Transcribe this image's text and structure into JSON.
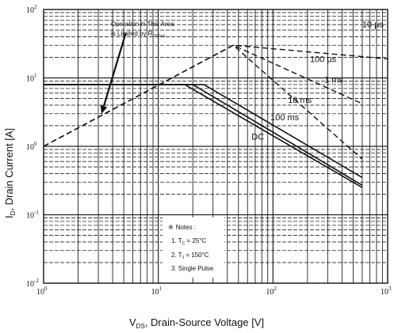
{
  "chart_data": {
    "type": "line",
    "x_scale": "log",
    "y_scale": "log",
    "xlim": [
      1,
      1000
    ],
    "ylim": [
      0.01,
      100
    ],
    "xlabel": {
      "main": "V",
      "sub": "DS",
      "rest": ", Drain-Source Voltage [V]"
    },
    "ylabel": {
      "main": "I",
      "sub": "D",
      "rest": ", Drain Current [A]"
    },
    "x_ticks": [
      {
        "value": 1,
        "base": "10",
        "exp": "0"
      },
      {
        "value": 10,
        "base": "10",
        "exp": "1"
      },
      {
        "value": 100,
        "base": "10",
        "exp": "2"
      },
      {
        "value": 1000,
        "base": "10",
        "exp": "3"
      }
    ],
    "y_ticks": [
      {
        "value": 0.01,
        "base": "10",
        "exp": "-2"
      },
      {
        "value": 0.1,
        "base": "10",
        "exp": "-1"
      },
      {
        "value": 1,
        "base": "10",
        "exp": "0"
      },
      {
        "value": 10,
        "base": "10",
        "exp": "1"
      },
      {
        "value": 100,
        "base": "10",
        "exp": "2"
      }
    ],
    "grid": true,
    "series": [
      {
        "name": "10 µs",
        "style": "dashed",
        "label_at": [
          600,
          55
        ],
        "x": [
          1,
          45,
          1000
        ],
        "y": [
          1.0,
          30.0,
          19.0
        ]
      },
      {
        "name": "100 µs",
        "style": "dashed",
        "label_at": [
          210,
          17
        ],
        "x": [
          1,
          45,
          600
        ],
        "y": [
          1.0,
          30.0,
          4.2
        ]
      },
      {
        "name": "1 ms",
        "style": "dashed",
        "label_at": [
          280,
          8.5
        ],
        "x": [
          1,
          45,
          600
        ],
        "y": [
          1.0,
          30.0,
          0.65
        ]
      },
      {
        "name": "10 ms",
        "style": "solid",
        "label_at": [
          135,
          4.3
        ],
        "x": [
          1,
          25,
          600
        ],
        "y": [
          8.0,
          8.0,
          0.35
        ]
      },
      {
        "name": "100 ms",
        "style": "solid",
        "label_at": [
          95,
          2.4
        ],
        "x": [
          1,
          20,
          600
        ],
        "y": [
          8.0,
          8.0,
          0.27
        ]
      },
      {
        "name": "DC",
        "style": "solid",
        "label_at": [
          65,
          1.25
        ],
        "x": [
          1,
          17,
          600
        ],
        "y": [
          8.0,
          8.0,
          0.25
        ]
      }
    ],
    "annotations": {
      "callout": {
        "line1": "Operation in This Area",
        "line2": "is Limited by R",
        "line2_sub": "DS(on)",
        "from": [
          5.2,
          45
        ],
        "to": [
          3.2,
          3.0
        ]
      },
      "notes": {
        "title": "Notes :",
        "bullet": "※",
        "line1_prefix": "1. T",
        "line1_sub": "C",
        "line1_value": " = 25°C",
        "line2_prefix": "2. T",
        "line2_sub": "J",
        "line2_value": " = 150°C",
        "line3": "3. Single Pulse"
      }
    }
  }
}
